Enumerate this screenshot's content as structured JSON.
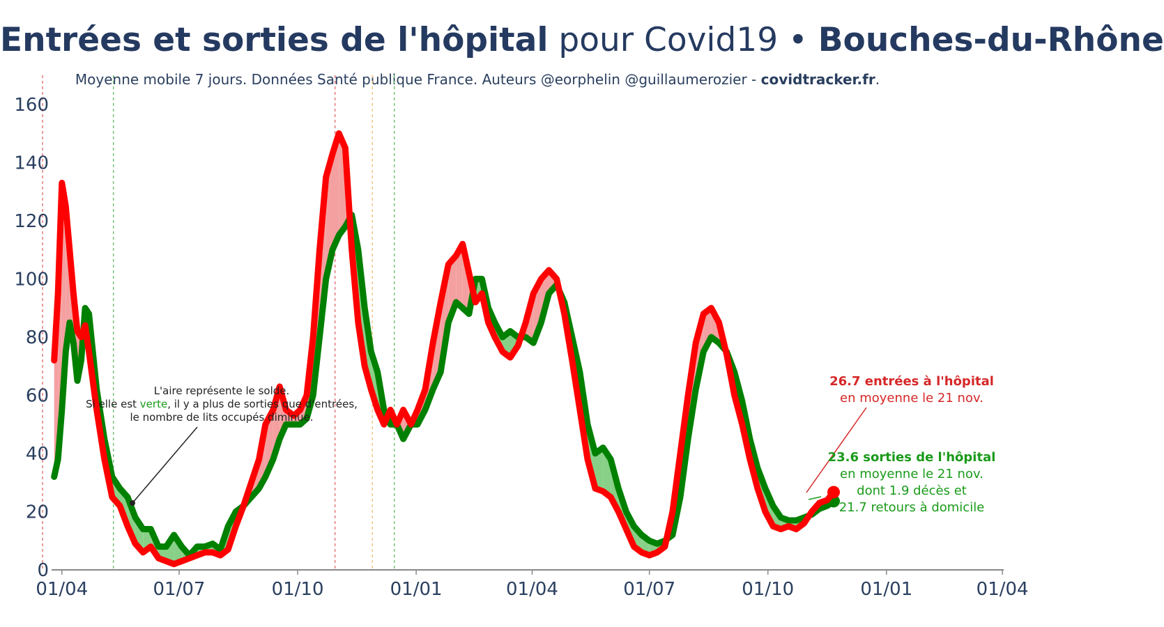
{
  "title": {
    "part1": "Entrées et sorties de l'hôpital",
    "part2": " pour Covid19 • ",
    "part3": "Bouches-du-Rhône"
  },
  "subtitle": {
    "text": "Moyenne mobile 7 jours. Données Santé publique France. Auteurs @eorphelin @guillaumerozier - ",
    "site": "covidtracker.fr",
    "end": "."
  },
  "annotation": {
    "line1": "L'aire représente le solde.",
    "line2a": "Si elle est ",
    "line2b": "verte",
    "line2c": ", il y a plus de sorties que d'entrées,",
    "line3": "le nombre de lits occupés diminue."
  },
  "label_entries": {
    "line1": "26.7 entrées à l'hôpital",
    "line2": "en moyenne le 21 nov."
  },
  "label_exits": {
    "line1": "23.6 sorties de l'hôpital",
    "line2": "en moyenne le 21 nov.",
    "line3": "dont 1.9 décès et",
    "line4": "21.7 retours à domicile"
  },
  "colors": {
    "entries": "#ff0000",
    "exits": "#008000",
    "fill_red": "#f4a0a0",
    "fill_green": "#88d088",
    "vline_red": "#e07070",
    "vline_green": "#6cbf6c",
    "vline_orange": "#f5c080"
  },
  "chart_data": {
    "type": "line",
    "title": "Entrées et sorties de l'hôpital pour Covid19 • Bouches-du-Rhône",
    "xlabel": "",
    "ylabel": "",
    "x_ticks": [
      "01/04",
      "01/07",
      "01/10",
      "01/01",
      "01/04",
      "01/07",
      "01/10",
      "01/01",
      "01/04"
    ],
    "x_tick_dates": [
      "2020-04-01",
      "2020-07-01",
      "2020-10-01",
      "2021-01-01",
      "2021-04-01",
      "2021-07-01",
      "2021-10-01",
      "2022-01-01",
      "2022-04-01"
    ],
    "y_ticks": [
      0,
      20,
      40,
      60,
      80,
      100,
      120,
      140,
      160
    ],
    "xlim": [
      "2020-03-24",
      "2022-04-02"
    ],
    "ylim": [
      0,
      170
    ],
    "grid": false,
    "legend": "none",
    "series": [
      {
        "name": "entrées",
        "color": "#ff0000",
        "points": [
          [
            "2020-03-26",
            72
          ],
          [
            "2020-03-29",
            95
          ],
          [
            "2020-04-01",
            133
          ],
          [
            "2020-04-04",
            125
          ],
          [
            "2020-04-07",
            110
          ],
          [
            "2020-04-10",
            95
          ],
          [
            "2020-04-13",
            82
          ],
          [
            "2020-04-16",
            80
          ],
          [
            "2020-04-19",
            84
          ],
          [
            "2020-04-22",
            75
          ],
          [
            "2020-04-28",
            55
          ],
          [
            "2020-05-04",
            38
          ],
          [
            "2020-05-10",
            25
          ],
          [
            "2020-05-16",
            22
          ],
          [
            "2020-05-22",
            15
          ],
          [
            "2020-05-28",
            9
          ],
          [
            "2020-06-03",
            6
          ],
          [
            "2020-06-09",
            8
          ],
          [
            "2020-06-15",
            4
          ],
          [
            "2020-06-21",
            3
          ],
          [
            "2020-06-27",
            2
          ],
          [
            "2020-07-03",
            3
          ],
          [
            "2020-07-09",
            4
          ],
          [
            "2020-07-15",
            5
          ],
          [
            "2020-07-21",
            6
          ],
          [
            "2020-07-27",
            6
          ],
          [
            "2020-08-02",
            5
          ],
          [
            "2020-08-08",
            7
          ],
          [
            "2020-08-14",
            15
          ],
          [
            "2020-08-20",
            22
          ],
          [
            "2020-08-26",
            30
          ],
          [
            "2020-09-01",
            38
          ],
          [
            "2020-09-06",
            50
          ],
          [
            "2020-09-12",
            55
          ],
          [
            "2020-09-17",
            63
          ],
          [
            "2020-09-22",
            55
          ],
          [
            "2020-09-28",
            53
          ],
          [
            "2020-10-03",
            55
          ],
          [
            "2020-10-08",
            60
          ],
          [
            "2020-10-13",
            80
          ],
          [
            "2020-10-18",
            110
          ],
          [
            "2020-10-23",
            135
          ],
          [
            "2020-10-28",
            143
          ],
          [
            "2020-11-02",
            150
          ],
          [
            "2020-11-07",
            145
          ],
          [
            "2020-11-12",
            110
          ],
          [
            "2020-11-17",
            85
          ],
          [
            "2020-11-22",
            70
          ],
          [
            "2020-11-27",
            62
          ],
          [
            "2020-12-02",
            55
          ],
          [
            "2020-12-07",
            50
          ],
          [
            "2020-12-12",
            55
          ],
          [
            "2020-12-17",
            50
          ],
          [
            "2020-12-22",
            55
          ],
          [
            "2020-12-28",
            50
          ],
          [
            "2021-01-02",
            55
          ],
          [
            "2021-01-08",
            62
          ],
          [
            "2021-01-14",
            78
          ],
          [
            "2021-01-20",
            92
          ],
          [
            "2021-01-26",
            105
          ],
          [
            "2021-02-01",
            108
          ],
          [
            "2021-02-06",
            112
          ],
          [
            "2021-02-11",
            102
          ],
          [
            "2021-02-16",
            92
          ],
          [
            "2021-02-21",
            95
          ],
          [
            "2021-02-26",
            85
          ],
          [
            "2021-03-03",
            80
          ],
          [
            "2021-03-09",
            75
          ],
          [
            "2021-03-15",
            73
          ],
          [
            "2021-03-21",
            77
          ],
          [
            "2021-03-27",
            85
          ],
          [
            "2021-04-02",
            95
          ],
          [
            "2021-04-08",
            100
          ],
          [
            "2021-04-14",
            103
          ],
          [
            "2021-04-20",
            100
          ],
          [
            "2021-04-26",
            88
          ],
          [
            "2021-05-02",
            72
          ],
          [
            "2021-05-08",
            55
          ],
          [
            "2021-05-14",
            38
          ],
          [
            "2021-05-20",
            28
          ],
          [
            "2021-05-26",
            27
          ],
          [
            "2021-06-01",
            25
          ],
          [
            "2021-06-07",
            20
          ],
          [
            "2021-06-13",
            14
          ],
          [
            "2021-06-19",
            8
          ],
          [
            "2021-06-25",
            6
          ],
          [
            "2021-07-01",
            5
          ],
          [
            "2021-07-07",
            6
          ],
          [
            "2021-07-13",
            8
          ],
          [
            "2021-07-19",
            20
          ],
          [
            "2021-07-25",
            40
          ],
          [
            "2021-07-31",
            60
          ],
          [
            "2021-08-06",
            78
          ],
          [
            "2021-08-12",
            88
          ],
          [
            "2021-08-18",
            90
          ],
          [
            "2021-08-24",
            85
          ],
          [
            "2021-08-30",
            74
          ],
          [
            "2021-09-05",
            60
          ],
          [
            "2021-09-11",
            50
          ],
          [
            "2021-09-17",
            38
          ],
          [
            "2021-09-23",
            28
          ],
          [
            "2021-09-29",
            20
          ],
          [
            "2021-10-05",
            15
          ],
          [
            "2021-10-11",
            14
          ],
          [
            "2021-10-17",
            15
          ],
          [
            "2021-10-23",
            14
          ],
          [
            "2021-10-29",
            16
          ],
          [
            "2021-11-04",
            20
          ],
          [
            "2021-11-10",
            23
          ],
          [
            "2021-11-16",
            24
          ],
          [
            "2021-11-21",
            26.7
          ]
        ]
      },
      {
        "name": "sorties",
        "color": "#008000",
        "points": [
          [
            "2020-03-26",
            32
          ],
          [
            "2020-03-29",
            38
          ],
          [
            "2020-04-01",
            55
          ],
          [
            "2020-04-04",
            75
          ],
          [
            "2020-04-07",
            85
          ],
          [
            "2020-04-10",
            78
          ],
          [
            "2020-04-13",
            65
          ],
          [
            "2020-04-16",
            72
          ],
          [
            "2020-04-19",
            90
          ],
          [
            "2020-04-22",
            88
          ],
          [
            "2020-04-28",
            62
          ],
          [
            "2020-05-04",
            45
          ],
          [
            "2020-05-10",
            32
          ],
          [
            "2020-05-16",
            28
          ],
          [
            "2020-05-22",
            25
          ],
          [
            "2020-05-28",
            18
          ],
          [
            "2020-06-03",
            14
          ],
          [
            "2020-06-09",
            14
          ],
          [
            "2020-06-15",
            8
          ],
          [
            "2020-06-21",
            8
          ],
          [
            "2020-06-27",
            12
          ],
          [
            "2020-07-03",
            8
          ],
          [
            "2020-07-09",
            5
          ],
          [
            "2020-07-15",
            8
          ],
          [
            "2020-07-21",
            8
          ],
          [
            "2020-07-27",
            9
          ],
          [
            "2020-08-02",
            7
          ],
          [
            "2020-08-08",
            15
          ],
          [
            "2020-08-14",
            20
          ],
          [
            "2020-08-20",
            22
          ],
          [
            "2020-08-26",
            25
          ],
          [
            "2020-09-01",
            28
          ],
          [
            "2020-09-06",
            32
          ],
          [
            "2020-09-12",
            38
          ],
          [
            "2020-09-17",
            45
          ],
          [
            "2020-09-22",
            50
          ],
          [
            "2020-09-28",
            50
          ],
          [
            "2020-10-03",
            50
          ],
          [
            "2020-10-08",
            52
          ],
          [
            "2020-10-13",
            60
          ],
          [
            "2020-10-18",
            80
          ],
          [
            "2020-10-23",
            100
          ],
          [
            "2020-10-28",
            110
          ],
          [
            "2020-11-02",
            115
          ],
          [
            "2020-11-07",
            118
          ],
          [
            "2020-11-12",
            122
          ],
          [
            "2020-11-17",
            110
          ],
          [
            "2020-11-22",
            90
          ],
          [
            "2020-11-27",
            75
          ],
          [
            "2020-12-02",
            68
          ],
          [
            "2020-12-07",
            55
          ],
          [
            "2020-12-12",
            50
          ],
          [
            "2020-12-17",
            50
          ],
          [
            "2020-12-22",
            45
          ],
          [
            "2020-12-28",
            50
          ],
          [
            "2021-01-02",
            50
          ],
          [
            "2021-01-08",
            55
          ],
          [
            "2021-01-14",
            62
          ],
          [
            "2021-01-20",
            68
          ],
          [
            "2021-01-26",
            85
          ],
          [
            "2021-02-01",
            92
          ],
          [
            "2021-02-06",
            90
          ],
          [
            "2021-02-11",
            88
          ],
          [
            "2021-02-16",
            100
          ],
          [
            "2021-02-21",
            100
          ],
          [
            "2021-02-26",
            90
          ],
          [
            "2021-03-03",
            85
          ],
          [
            "2021-03-09",
            80
          ],
          [
            "2021-03-15",
            82
          ],
          [
            "2021-03-21",
            80
          ],
          [
            "2021-03-27",
            80
          ],
          [
            "2021-04-02",
            78
          ],
          [
            "2021-04-08",
            85
          ],
          [
            "2021-04-14",
            95
          ],
          [
            "2021-04-20",
            98
          ],
          [
            "2021-04-26",
            92
          ],
          [
            "2021-05-02",
            80
          ],
          [
            "2021-05-08",
            68
          ],
          [
            "2021-05-14",
            50
          ],
          [
            "2021-05-20",
            40
          ],
          [
            "2021-05-26",
            42
          ],
          [
            "2021-06-01",
            38
          ],
          [
            "2021-06-07",
            28
          ],
          [
            "2021-06-13",
            20
          ],
          [
            "2021-06-19",
            15
          ],
          [
            "2021-06-25",
            12
          ],
          [
            "2021-07-01",
            10
          ],
          [
            "2021-07-07",
            9
          ],
          [
            "2021-07-13",
            10
          ],
          [
            "2021-07-19",
            12
          ],
          [
            "2021-07-25",
            25
          ],
          [
            "2021-07-31",
            45
          ],
          [
            "2021-08-06",
            62
          ],
          [
            "2021-08-12",
            75
          ],
          [
            "2021-08-18",
            80
          ],
          [
            "2021-08-24",
            78
          ],
          [
            "2021-08-30",
            75
          ],
          [
            "2021-09-05",
            68
          ],
          [
            "2021-09-11",
            58
          ],
          [
            "2021-09-17",
            45
          ],
          [
            "2021-09-23",
            35
          ],
          [
            "2021-09-29",
            28
          ],
          [
            "2021-10-05",
            22
          ],
          [
            "2021-10-11",
            18
          ],
          [
            "2021-10-17",
            17
          ],
          [
            "2021-10-23",
            17
          ],
          [
            "2021-10-29",
            18
          ],
          [
            "2021-11-04",
            19
          ],
          [
            "2021-11-10",
            21
          ],
          [
            "2021-11-16",
            22
          ],
          [
            "2021-11-21",
            23.6
          ]
        ]
      }
    ],
    "vlines": [
      {
        "date": "2020-03-17",
        "color": "#e07070"
      },
      {
        "date": "2020-05-11",
        "color": "#6cbf6c"
      },
      {
        "date": "2020-10-30",
        "color": "#e07070"
      },
      {
        "date": "2020-11-28",
        "color": "#f5c080"
      },
      {
        "date": "2020-12-15",
        "color": "#6cbf6c"
      }
    ]
  }
}
